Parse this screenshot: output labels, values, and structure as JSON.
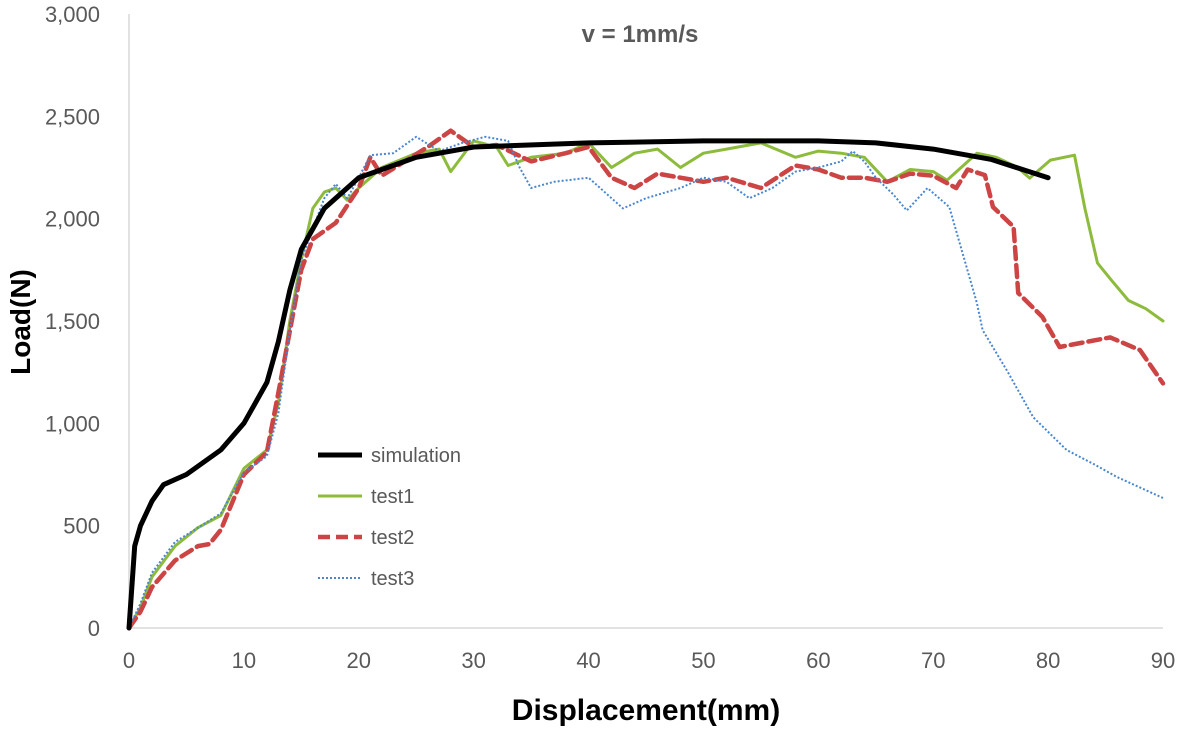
{
  "chart_data": {
    "type": "line",
    "title": "v = 1mm/s",
    "xlabel": "Displacement(mm)",
    "ylabel": "Load(N)",
    "xlim": [
      0,
      90
    ],
    "ylim": [
      0,
      3000
    ],
    "xticks": [
      "0",
      "10",
      "20",
      "30",
      "40",
      "50",
      "60",
      "70",
      "80",
      "90"
    ],
    "xtick_values": [
      0,
      10,
      20,
      30,
      40,
      50,
      60,
      70,
      80,
      90
    ],
    "yticks": [
      "0",
      "500",
      "1,000",
      "1,500",
      "2,000",
      "2,500",
      "3,000"
    ],
    "ytick_values": [
      0,
      500,
      1000,
      1500,
      2000,
      2500,
      3000
    ],
    "grid": false,
    "legend_position": "lower-left-inside",
    "series": [
      {
        "name": "simulation",
        "color": "#000000",
        "style": "solid-thick",
        "points": [
          [
            0,
            0
          ],
          [
            0.5,
            400
          ],
          [
            1,
            500
          ],
          [
            2,
            620
          ],
          [
            3,
            700
          ],
          [
            5,
            750
          ],
          [
            8,
            870
          ],
          [
            10,
            1000
          ],
          [
            12,
            1200
          ],
          [
            13,
            1400
          ],
          [
            14,
            1650
          ],
          [
            15,
            1850
          ],
          [
            17,
            2050
          ],
          [
            20,
            2200
          ],
          [
            25,
            2300
          ],
          [
            30,
            2350
          ],
          [
            40,
            2370
          ],
          [
            50,
            2380
          ],
          [
            60,
            2380
          ],
          [
            65,
            2370
          ],
          [
            70,
            2340
          ],
          [
            75,
            2290
          ],
          [
            80,
            2200
          ]
        ]
      },
      {
        "name": "test1",
        "color": "#8DBB3C",
        "style": "solid",
        "points": [
          [
            0,
            0
          ],
          [
            1,
            100
          ],
          [
            2,
            250
          ],
          [
            4,
            400
          ],
          [
            6,
            490
          ],
          [
            8,
            550
          ],
          [
            10,
            780
          ],
          [
            12,
            870
          ],
          [
            13,
            1100
          ],
          [
            14,
            1500
          ],
          [
            15,
            1800
          ],
          [
            16,
            2050
          ],
          [
            17,
            2130
          ],
          [
            18,
            2150
          ],
          [
            19,
            2090
          ],
          [
            20,
            2150
          ],
          [
            22,
            2250
          ],
          [
            25,
            2320
          ],
          [
            27,
            2340
          ],
          [
            28,
            2230
          ],
          [
            30,
            2380
          ],
          [
            32,
            2350
          ],
          [
            33,
            2260
          ],
          [
            35,
            2300
          ],
          [
            38,
            2320
          ],
          [
            40,
            2370
          ],
          [
            42,
            2250
          ],
          [
            44,
            2320
          ],
          [
            46,
            2340
          ],
          [
            48,
            2250
          ],
          [
            50,
            2320
          ],
          [
            52,
            2340
          ],
          [
            55,
            2370
          ],
          [
            58,
            2300
          ],
          [
            60,
            2330
          ],
          [
            62,
            2320
          ],
          [
            64,
            2300
          ],
          [
            66,
            2180
          ],
          [
            68,
            2240
          ],
          [
            70,
            2230
          ],
          [
            71.2,
            2188
          ],
          [
            73.8,
            2320
          ],
          [
            75.5,
            2300
          ],
          [
            77.3,
            2252
          ],
          [
            78.4,
            2198
          ],
          [
            80.2,
            2286
          ],
          [
            82.3,
            2310
          ],
          [
            83.2,
            2050
          ],
          [
            84.3,
            1783
          ],
          [
            85.5,
            1700
          ],
          [
            87,
            1600
          ],
          [
            88.5,
            1560
          ],
          [
            90,
            1500
          ]
        ]
      },
      {
        "name": "test2",
        "color": "#CC4444",
        "style": "dashed-thick",
        "points": [
          [
            0,
            0
          ],
          [
            1,
            80
          ],
          [
            2,
            200
          ],
          [
            4,
            330
          ],
          [
            6,
            400
          ],
          [
            7,
            410
          ],
          [
            8,
            480
          ],
          [
            10,
            750
          ],
          [
            12,
            860
          ],
          [
            13,
            1150
          ],
          [
            14,
            1450
          ],
          [
            15,
            1750
          ],
          [
            16,
            1900
          ],
          [
            18,
            1980
          ],
          [
            20,
            2150
          ],
          [
            21,
            2300
          ],
          [
            22,
            2210
          ],
          [
            24,
            2280
          ],
          [
            26,
            2350
          ],
          [
            28,
            2430
          ],
          [
            30,
            2350
          ],
          [
            32,
            2360
          ],
          [
            35,
            2280
          ],
          [
            38,
            2320
          ],
          [
            40,
            2350
          ],
          [
            42,
            2200
          ],
          [
            44,
            2150
          ],
          [
            46,
            2220
          ],
          [
            48,
            2200
          ],
          [
            50,
            2180
          ],
          [
            52,
            2200
          ],
          [
            55,
            2150
          ],
          [
            58,
            2260
          ],
          [
            60,
            2240
          ],
          [
            62,
            2200
          ],
          [
            64,
            2200
          ],
          [
            66,
            2180
          ],
          [
            68,
            2220
          ],
          [
            70,
            2210
          ],
          [
            72,
            2150
          ],
          [
            73,
            2240
          ],
          [
            74.5,
            2213
          ],
          [
            75.2,
            2057
          ],
          [
            77,
            1960
          ],
          [
            77.4,
            1637
          ],
          [
            79.5,
            1520
          ],
          [
            81,
            1373
          ],
          [
            83.5,
            1400
          ],
          [
            85.4,
            1420
          ],
          [
            88,
            1358
          ],
          [
            90,
            1195
          ]
        ]
      },
      {
        "name": "test3",
        "color": "#4A86D0",
        "style": "dotted",
        "points": [
          [
            0,
            0
          ],
          [
            1,
            120
          ],
          [
            2,
            270
          ],
          [
            4,
            420
          ],
          [
            6,
            490
          ],
          [
            8,
            560
          ],
          [
            10,
            760
          ],
          [
            12,
            840
          ],
          [
            13,
            1050
          ],
          [
            14,
            1450
          ],
          [
            15,
            1800
          ],
          [
            16,
            1950
          ],
          [
            17,
            2100
          ],
          [
            18,
            2170
          ],
          [
            19,
            2100
          ],
          [
            20,
            2200
          ],
          [
            21,
            2310
          ],
          [
            23,
            2320
          ],
          [
            25,
            2400
          ],
          [
            27,
            2330
          ],
          [
            29,
            2370
          ],
          [
            31,
            2400
          ],
          [
            33,
            2380
          ],
          [
            34,
            2250
          ],
          [
            35,
            2150
          ],
          [
            37,
            2180
          ],
          [
            40,
            2200
          ],
          [
            42,
            2100
          ],
          [
            43,
            2050
          ],
          [
            45,
            2100
          ],
          [
            48,
            2150
          ],
          [
            50,
            2200
          ],
          [
            52,
            2180
          ],
          [
            54,
            2100
          ],
          [
            56,
            2150
          ],
          [
            58,
            2230
          ],
          [
            60,
            2250
          ],
          [
            62,
            2280
          ],
          [
            63,
            2330
          ],
          [
            64,
            2280
          ],
          [
            65,
            2200
          ],
          [
            66.5,
            2120
          ],
          [
            67.7,
            2040
          ],
          [
            69.5,
            2150
          ],
          [
            71.4,
            2057
          ],
          [
            73.8,
            1588
          ],
          [
            74.3,
            1456
          ],
          [
            76.5,
            1250
          ],
          [
            78.7,
            1030
          ],
          [
            81.6,
            870
          ],
          [
            84,
            800
          ],
          [
            86,
            738
          ],
          [
            90,
            635
          ]
        ]
      }
    ]
  }
}
